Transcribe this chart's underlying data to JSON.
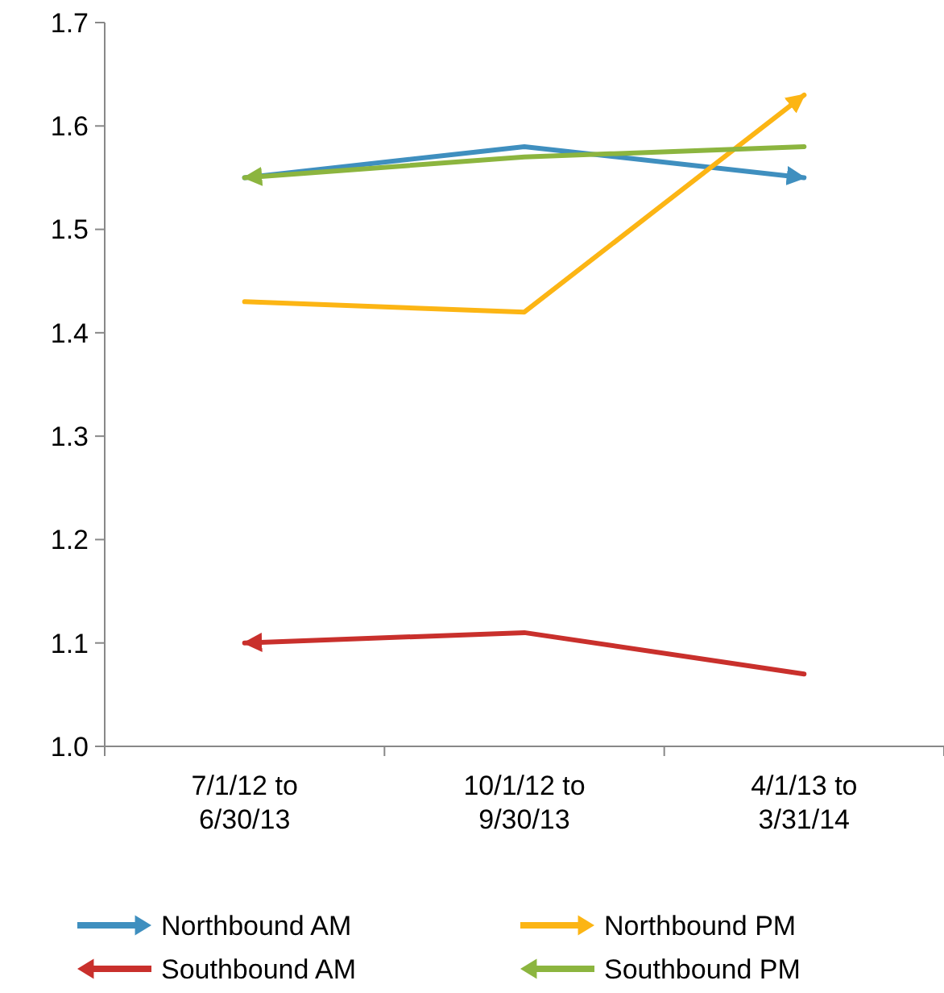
{
  "chart_data": {
    "type": "line",
    "categories": [
      "7/1/12 to\n6/30/13",
      "10/1/12 to\n9/30/13",
      "4/1/13 to\n3/31/14"
    ],
    "ylim": [
      1.0,
      1.7
    ],
    "yticks": [
      {
        "value": 1.0,
        "label": "1.0"
      },
      1.1,
      1.2,
      1.3,
      1.4,
      1.5,
      1.6,
      1.7
    ],
    "grid": false,
    "legend": "bottom",
    "series": [
      {
        "name": "Northbound AM",
        "color": "#3f8fbf",
        "values": [
          1.55,
          1.58,
          1.55
        ]
      },
      {
        "name": "Northbound PM",
        "color": "#fcb514",
        "values": [
          1.43,
          1.42,
          1.63
        ]
      },
      {
        "name": "Southbound AM",
        "color": "#c9302c",
        "values": [
          1.1,
          1.11,
          1.07
        ]
      },
      {
        "name": "Southbound PM",
        "color": "#8cb53f",
        "values": [
          1.55,
          1.57,
          1.58
        ]
      }
    ]
  }
}
